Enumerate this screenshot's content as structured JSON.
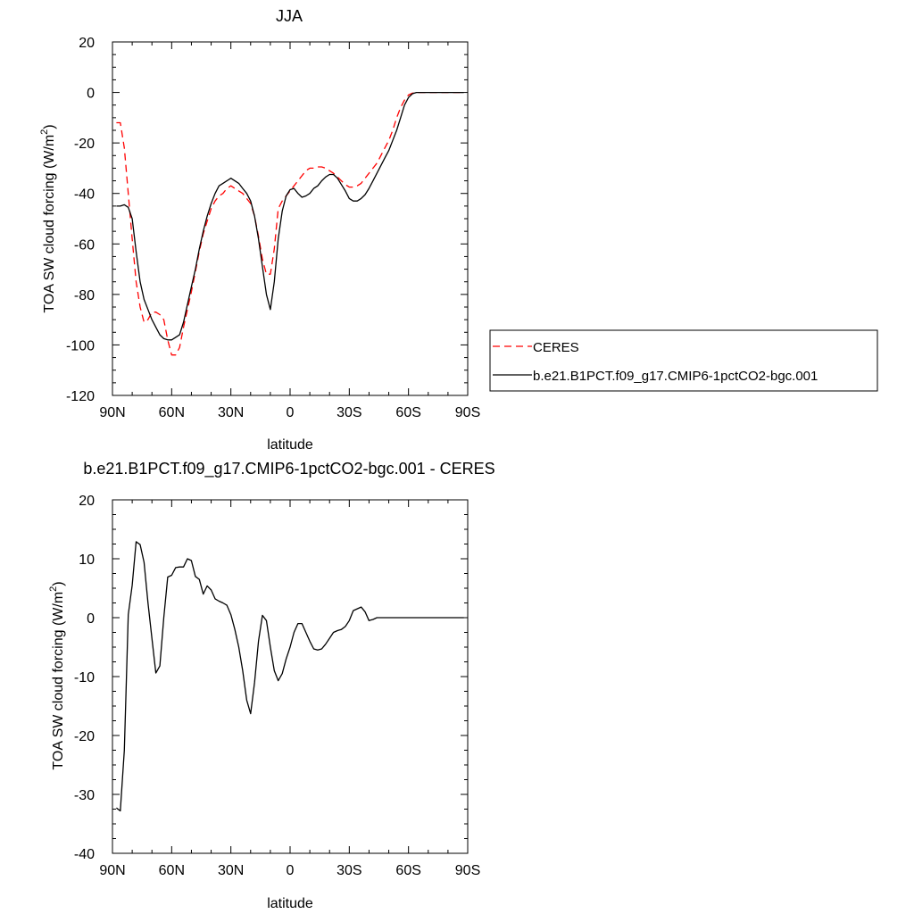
{
  "chart_data": [
    {
      "type": "line",
      "title": "JJA",
      "xlabel": "latitude",
      "ylabel": "TOA SW cloud forcing (W/m",
      "ylabel_sup": "2",
      "ylabel_close": ")",
      "xlim": [
        90,
        -90
      ],
      "ylim": [
        -120,
        20
      ],
      "xticks": [
        90,
        60,
        30,
        0,
        -30,
        -60,
        -90
      ],
      "xtick_labels": [
        "90N",
        "60N",
        "30N",
        "0",
        "30S",
        "60S",
        "90S"
      ],
      "yticks": [
        20,
        0,
        -20,
        -40,
        -60,
        -80,
        -100,
        -120
      ],
      "ytick_labels": [
        "20",
        "0",
        "-20",
        "-40",
        "-60",
        "-80",
        "-100",
        "-120"
      ],
      "legend": {
        "placement": "right",
        "entries": [
          {
            "label": "CERES",
            "color": "#ff0000",
            "dash": "dashed"
          },
          {
            "label": "b.e21.B1PCT.f09_g17.CMIP6-1pctCO2-bgc.001",
            "color": "#000000",
            "dash": "solid"
          }
        ]
      },
      "series": [
        {
          "name": "CERES",
          "color": "#ff0000",
          "dash": "dashed",
          "x": [
            88,
            86,
            84,
            82,
            80,
            78,
            76,
            74,
            72,
            70,
            68,
            66,
            64,
            62,
            60,
            58,
            56,
            54,
            52,
            50,
            48,
            46,
            44,
            42,
            40,
            38,
            36,
            34,
            32,
            30,
            28,
            26,
            24,
            22,
            20,
            18,
            16,
            14,
            12,
            10,
            8,
            6,
            4,
            2,
            0,
            -2,
            -4,
            -6,
            -8,
            -10,
            -12,
            -14,
            -16,
            -18,
            -20,
            -22,
            -24,
            -26,
            -28,
            -30,
            -32,
            -34,
            -36,
            -38,
            -40,
            -42,
            -44,
            -46,
            -48,
            -50,
            -52,
            -54,
            -56,
            -58,
            -60,
            -62,
            -64,
            -66,
            -68,
            -70,
            -72,
            -74,
            -76,
            -78,
            -80,
            -82,
            -84,
            -86,
            -88
          ],
          "y": [
            -12,
            -12,
            -22,
            -40,
            -58,
            -75,
            -85,
            -91,
            -90,
            -87,
            -87,
            -88,
            -90,
            -98,
            -104,
            -104,
            -101,
            -93,
            -86,
            -79,
            -71,
            -63,
            -56,
            -51,
            -46,
            -43,
            -41,
            -40,
            -38,
            -37,
            -38,
            -39,
            -40,
            -42,
            -44,
            -49,
            -57,
            -66,
            -72,
            -72,
            -62,
            -46,
            -43,
            -41,
            -39,
            -37,
            -35,
            -33,
            -31,
            -30,
            -30,
            -29.5,
            -29.5,
            -30,
            -31,
            -32,
            -33.5,
            -35,
            -36.5,
            -37.5,
            -37.5,
            -37,
            -36,
            -34,
            -32,
            -30,
            -28,
            -25,
            -22,
            -19,
            -15,
            -10,
            -6,
            -3,
            -1,
            -0.3,
            0,
            0,
            0,
            0,
            0,
            0,
            0,
            0,
            0,
            0,
            0,
            0,
            0
          ]
        },
        {
          "name": "b.e21.B1PCT.f09_g17.CMIP6-1pctCO2-bgc.001",
          "color": "#000000",
          "dash": "solid",
          "x": [
            88,
            86,
            84,
            82,
            80,
            78,
            76,
            74,
            72,
            70,
            68,
            66,
            64,
            62,
            60,
            58,
            56,
            54,
            52,
            50,
            48,
            46,
            44,
            42,
            40,
            38,
            36,
            34,
            32,
            30,
            28,
            26,
            24,
            22,
            20,
            18,
            16,
            14,
            12,
            10,
            8,
            6,
            4,
            2,
            0,
            -2,
            -4,
            -6,
            -8,
            -10,
            -12,
            -14,
            -16,
            -18,
            -20,
            -22,
            -24,
            -26,
            -28,
            -30,
            -32,
            -34,
            -36,
            -38,
            -40,
            -42,
            -44,
            -46,
            -48,
            -50,
            -52,
            -54,
            -56,
            -58,
            -60,
            -62,
            -64,
            -66,
            -68,
            -70,
            -72,
            -74,
            -76,
            -78,
            -80,
            -82,
            -84,
            -86,
            -88
          ],
          "y": [
            -45,
            -45,
            -44.5,
            -45.5,
            -50,
            -63,
            -75,
            -82,
            -86,
            -90,
            -93,
            -96,
            -97.5,
            -98,
            -98,
            -97,
            -96,
            -91,
            -84,
            -77,
            -70,
            -62,
            -55,
            -49,
            -44,
            -40,
            -37,
            -36,
            -35,
            -34,
            -35,
            -36,
            -38,
            -40,
            -43,
            -49,
            -58,
            -69,
            -80,
            -86,
            -75,
            -58,
            -47,
            -41,
            -38.5,
            -38,
            -40,
            -41.5,
            -41,
            -40,
            -38,
            -37,
            -35,
            -33.5,
            -32.5,
            -32.5,
            -34,
            -36.5,
            -39,
            -42,
            -43,
            -43,
            -42,
            -40.5,
            -38,
            -35,
            -32,
            -29,
            -26,
            -23,
            -19,
            -15,
            -10,
            -5,
            -2,
            -0.5,
            0,
            0,
            0,
            0,
            0,
            0,
            0,
            0,
            0,
            0,
            0,
            0,
            0
          ]
        }
      ]
    },
    {
      "type": "line",
      "title": "b.e21.B1PCT.f09_g17.CMIP6-1pctCO2-bgc.001 - CERES",
      "xlabel": "latitude",
      "ylabel": "TOA SW cloud forcing (W/m",
      "ylabel_sup": "2",
      "ylabel_close": ")",
      "xlim": [
        90,
        -90
      ],
      "ylim": [
        -40,
        20
      ],
      "xticks": [
        90,
        60,
        30,
        0,
        -30,
        -60,
        -90
      ],
      "xtick_labels": [
        "90N",
        "60N",
        "30N",
        "0",
        "30S",
        "60S",
        "90S"
      ],
      "yticks": [
        20,
        10,
        0,
        -10,
        -20,
        -30,
        -40
      ],
      "ytick_labels": [
        "20",
        "10",
        "0",
        "-10",
        "-20",
        "-30",
        "-40"
      ],
      "series": [
        {
          "color": "#000000",
          "dash": "solid",
          "x": [
            88,
            86,
            84,
            82,
            80,
            78,
            76,
            74,
            72,
            70,
            68,
            66,
            64,
            62,
            60,
            58,
            56,
            54,
            52,
            50,
            48,
            46,
            44,
            42,
            40,
            38,
            36,
            34,
            32,
            30,
            28,
            26,
            24,
            22,
            20,
            18,
            16,
            14,
            12,
            10,
            8,
            6,
            4,
            2,
            0,
            -2,
            -4,
            -6,
            -8,
            -10,
            -12,
            -14,
            -16,
            -18,
            -20,
            -22,
            -24,
            -26,
            -28,
            -30,
            -32,
            -34,
            -36,
            -38,
            -40,
            -42,
            -44,
            -46,
            -48,
            -50,
            -52,
            -54,
            -56,
            -58,
            -60,
            -62,
            -64,
            -66,
            -68,
            -70,
            -72,
            -74,
            -76,
            -78,
            -80,
            -82,
            -84,
            -86,
            -88
          ],
          "y": [
            -32.3,
            -32.8,
            -22.5,
            0.5,
            5.5,
            12.9,
            12.4,
            9.4,
            2.5,
            -3.5,
            -9.4,
            -8.2,
            0,
            6.9,
            7.2,
            8.5,
            8.6,
            8.6,
            10,
            9.7,
            7,
            6.5,
            4,
            5.4,
            4.7,
            3.2,
            2.8,
            2.5,
            2.1,
            0.5,
            -2,
            -5,
            -9,
            -14,
            -16.3,
            -11,
            -4,
            0.4,
            -0.5,
            -5,
            -9,
            -10.7,
            -9.5,
            -7,
            -5,
            -2.5,
            -1,
            -1,
            -2.5,
            -4,
            -5.3,
            -5.5,
            -5.3,
            -4.5,
            -3.5,
            -2.5,
            -2.2,
            -2,
            -1.5,
            -0.5,
            1.2,
            1.5,
            1.8,
            1,
            -0.5,
            -0.3,
            0,
            0,
            0,
            0,
            0,
            0,
            0,
            0,
            0,
            0,
            0,
            0,
            0,
            0,
            0,
            0,
            0,
            0,
            0,
            0,
            0,
            0,
            0
          ]
        }
      ]
    }
  ]
}
